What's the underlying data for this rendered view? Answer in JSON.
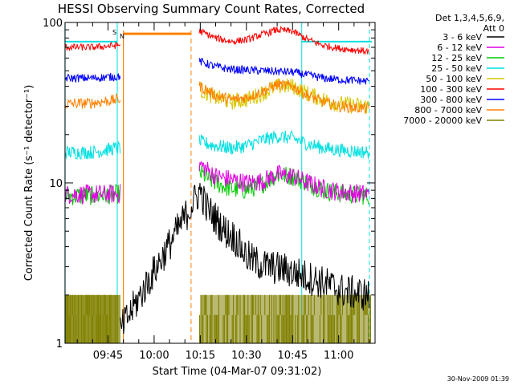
{
  "chart_data": {
    "type": "line",
    "title": "HESSI Observing Summary Count Rates, Corrected",
    "ylabel": "Corrected Count Rate (s⁻¹ detector⁻¹)",
    "xlabel": "Start Time (04-Mar-07 09:31:02)",
    "y_scale": "log",
    "ylim": [
      1,
      100
    ],
    "y_ticks": [
      "1",
      "10",
      "100"
    ],
    "xlim": [
      "09:31",
      "11:11"
    ],
    "x_ticks": [
      "09:45",
      "10:00",
      "10:15",
      "10:30",
      "10:45",
      "11:00"
    ],
    "legend_header": [
      "Det 1,3,4,5,6,9,",
      "Att 0"
    ],
    "legend_position": "right",
    "flags": [
      "S",
      "N"
    ],
    "footer": "30-Nov-2009 01:39",
    "markers": {
      "cyan_solid": [
        "09:31",
        "09:48",
        "10:48"
      ],
      "cyan_dashed": [
        "09:48",
        "11:10"
      ],
      "orange_dashed": [
        "10:12"
      ],
      "orange_solid": [
        "09:50"
      ],
      "orange_bar": {
        "from": "09:50",
        "to": "10:12",
        "y": 85
      }
    },
    "cyan_level": 76,
    "series": [
      {
        "name": "3 - 6 keV",
        "color": "#000000",
        "points": [
          [
            "09:49",
            1.2
          ],
          [
            "10:15",
            9
          ],
          [
            "10:17",
            7
          ],
          [
            "10:20",
            6
          ],
          [
            "10:23",
            5
          ],
          [
            "10:26",
            4.6
          ],
          [
            "10:28",
            4
          ],
          [
            "10:30",
            3.5
          ],
          [
            "10:33",
            3.2
          ],
          [
            "10:37",
            3.0
          ],
          [
            "10:42",
            2.9
          ],
          [
            "10:47",
            2.7
          ],
          [
            "10:52",
            2.5
          ],
          [
            "10:57",
            2.3
          ],
          [
            "11:02",
            2.1
          ],
          [
            "11:10",
            2.0
          ]
        ]
      },
      {
        "name": "6 - 12 keV",
        "color": "#e000e0",
        "points": [
          [
            "09:31",
            8.5
          ],
          [
            "09:40",
            8.5
          ],
          [
            "09:48",
            8.5
          ],
          [
            "10:15",
            13
          ],
          [
            "10:20",
            11
          ],
          [
            "10:25",
            10.5
          ],
          [
            "10:30",
            10
          ],
          [
            "10:35",
            10.2
          ],
          [
            "10:40",
            11.3
          ],
          [
            "10:45",
            11
          ],
          [
            "10:50",
            10
          ],
          [
            "10:55",
            9.2
          ],
          [
            "11:00",
            8.8
          ],
          [
            "11:10",
            8.5
          ]
        ]
      },
      {
        "name": "12 - 25 keV",
        "color": "#00cc00",
        "points": [
          [
            "09:31",
            8.3
          ],
          [
            "09:40",
            8.3
          ],
          [
            "09:48",
            8.5
          ],
          [
            "10:15",
            11.5
          ],
          [
            "10:20",
            10
          ],
          [
            "10:25",
            9.2
          ],
          [
            "10:30",
            9
          ],
          [
            "10:35",
            9.8
          ],
          [
            "10:40",
            11.3
          ],
          [
            "10:45",
            11
          ],
          [
            "10:50",
            10
          ],
          [
            "10:55",
            9
          ],
          [
            "11:00",
            8.6
          ],
          [
            "11:10",
            8.3
          ]
        ]
      },
      {
        "name": "25 - 50 keV",
        "color": "#00e0e0",
        "points": [
          [
            "09:31",
            15.5
          ],
          [
            "09:40",
            15.5
          ],
          [
            "09:48",
            16.5
          ],
          [
            "10:15",
            18
          ],
          [
            "10:20",
            17
          ],
          [
            "10:25",
            16.5
          ],
          [
            "10:30",
            17
          ],
          [
            "10:35",
            18.5
          ],
          [
            "10:40",
            19.5
          ],
          [
            "10:45",
            19
          ],
          [
            "10:50",
            17.5
          ],
          [
            "10:55",
            16.5
          ],
          [
            "11:00",
            16
          ],
          [
            "11:10",
            15.5
          ]
        ]
      },
      {
        "name": "50 - 100 keV",
        "color": "#d8c800",
        "points": [
          [
            "10:15",
            38
          ],
          [
            "10:20",
            34
          ],
          [
            "10:25",
            32
          ],
          [
            "10:30",
            33
          ],
          [
            "10:35",
            36
          ],
          [
            "10:40",
            40
          ],
          [
            "10:45",
            40
          ],
          [
            "10:50",
            36
          ],
          [
            "10:55",
            33
          ],
          [
            "11:00",
            31
          ],
          [
            "11:10",
            30
          ]
        ]
      },
      {
        "name": "100 - 300 keV",
        "color": "#ff0000",
        "points": [
          [
            "09:31",
            70
          ],
          [
            "09:40",
            70
          ],
          [
            "09:48",
            72
          ],
          [
            "10:15",
            88
          ],
          [
            "10:20",
            80
          ],
          [
            "10:25",
            76
          ],
          [
            "10:30",
            78
          ],
          [
            "10:35",
            84
          ],
          [
            "10:40",
            90
          ],
          [
            "10:45",
            88
          ],
          [
            "10:50",
            78
          ],
          [
            "10:55",
            72
          ],
          [
            "11:00",
            69
          ],
          [
            "11:10",
            66
          ]
        ]
      },
      {
        "name": "300 - 800 keV",
        "color": "#0000ff",
        "points": [
          [
            "09:31",
            45
          ],
          [
            "09:40",
            45
          ],
          [
            "09:48",
            46
          ],
          [
            "10:15",
            57
          ],
          [
            "10:20",
            53
          ],
          [
            "10:25",
            51
          ],
          [
            "10:30",
            50.5
          ],
          [
            "10:35",
            50
          ],
          [
            "10:40",
            49.5
          ],
          [
            "10:45",
            49
          ],
          [
            "10:50",
            47
          ],
          [
            "10:55",
            45
          ],
          [
            "11:00",
            44
          ],
          [
            "11:10",
            43
          ]
        ]
      },
      {
        "name": "800 - 7000 keV",
        "color": "#ff8000",
        "points": [
          [
            "09:31",
            31
          ],
          [
            "09:40",
            31.5
          ],
          [
            "09:48",
            33
          ],
          [
            "10:15",
            40
          ],
          [
            "10:20",
            35
          ],
          [
            "10:25",
            33
          ],
          [
            "10:30",
            34
          ],
          [
            "10:35",
            37
          ],
          [
            "10:40",
            41
          ],
          [
            "10:45",
            40
          ],
          [
            "10:50",
            35
          ],
          [
            "10:55",
            32
          ],
          [
            "11:00",
            30
          ],
          [
            "11:10",
            29
          ]
        ]
      },
      {
        "name": "7000 - 20000 keV",
        "color": "#808000",
        "points": [
          [
            "09:31",
            1.5
          ],
          [
            "09:48",
            1.5
          ],
          [
            "10:15",
            1.5
          ],
          [
            "11:10",
            1.5
          ]
        ]
      }
    ]
  }
}
